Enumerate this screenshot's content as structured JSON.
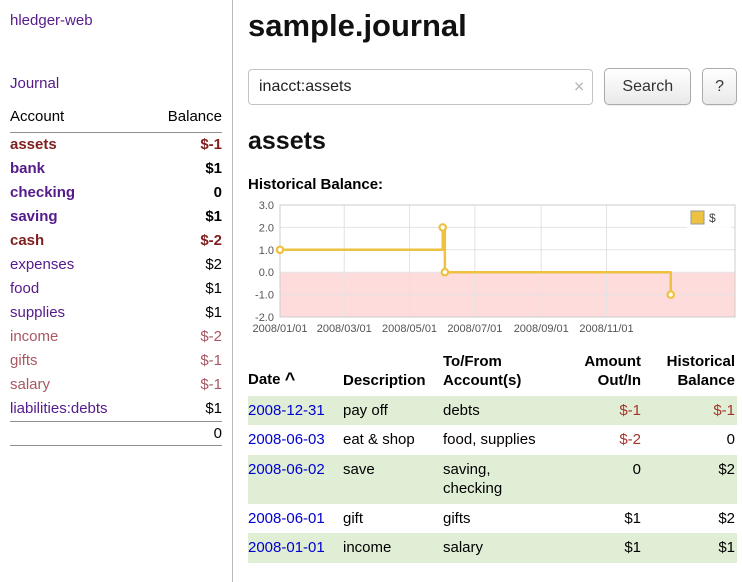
{
  "app": {
    "title": "hledger-web"
  },
  "sidebar": {
    "journal_label": "Journal",
    "accounts": {
      "header_account": "Account",
      "header_balance": "Balance",
      "rows": [
        {
          "name": "assets",
          "balance": "$-1"
        },
        {
          "name": "bank",
          "balance": "$1"
        },
        {
          "name": "checking",
          "balance": "0"
        },
        {
          "name": "saving",
          "balance": "$1"
        },
        {
          "name": "cash",
          "balance": "$-2"
        },
        {
          "name": "expenses",
          "balance": "$2"
        },
        {
          "name": "food",
          "balance": "$1"
        },
        {
          "name": "supplies",
          "balance": "$1"
        },
        {
          "name": "income",
          "balance": "$-2"
        },
        {
          "name": "gifts",
          "balance": "$-1"
        },
        {
          "name": "salary",
          "balance": "$-1"
        },
        {
          "name": "liabilities:debts",
          "balance": "$1"
        }
      ],
      "total": "0"
    }
  },
  "main": {
    "title": "sample.journal",
    "search": {
      "value": "inacct:assets",
      "clear_icon": "×",
      "button_label": "Search",
      "help_label": "?"
    },
    "account_heading": "assets",
    "chart_title": "Historical Balance:"
  },
  "chart_data": {
    "type": "line",
    "line_style": "step",
    "title": "Historical Balance",
    "x_min": "2008-01-01",
    "x_max": "2009-03-01",
    "ylim": [
      -2,
      3
    ],
    "yticks": [
      {
        "v": 3,
        "label": "3.0"
      },
      {
        "v": 2,
        "label": "2.0"
      },
      {
        "v": 1,
        "label": "1.0"
      },
      {
        "v": 0,
        "label": "0.0"
      },
      {
        "v": -1,
        "label": "-1.0"
      },
      {
        "v": -2,
        "label": "-2.0"
      }
    ],
    "xticks": [
      {
        "date": "2008-01-01",
        "label": "2008/01/01"
      },
      {
        "date": "2008-03-01",
        "label": "2008/03/01"
      },
      {
        "date": "2008-05-01",
        "label": "2008/05/01"
      },
      {
        "date": "2008-07-01",
        "label": "2008/07/01"
      },
      {
        "date": "2008-09-01",
        "label": "2008/09/01"
      },
      {
        "date": "2008-11-01",
        "label": "2008/11/01"
      }
    ],
    "series": [
      {
        "name": "$",
        "color": "#edc240",
        "points": [
          {
            "date": "2008-01-01",
            "value": 1
          },
          {
            "date": "2008-06-01",
            "value": 2
          },
          {
            "date": "2008-06-03",
            "value": 0
          },
          {
            "date": "2008-12-31",
            "value": -1
          }
        ]
      }
    ],
    "legend": {
      "label": "$",
      "box_color": "#edc240",
      "position": "top-right"
    },
    "negative_region_color": "#ffdcdc",
    "grid": true
  },
  "register": {
    "headers": {
      "date": "Date",
      "sort_indicator": "^",
      "description": "Description",
      "account": "To/From Account(s)",
      "amount": "Amount Out/In",
      "balance": "Historical Balance"
    },
    "rows": [
      {
        "date": "2008-12-31",
        "description": "pay off",
        "account": "debts",
        "amount": "$-1",
        "balance": "$-1"
      },
      {
        "date": "2008-06-03",
        "description": "eat & shop",
        "account": "food, supplies",
        "amount": "$-2",
        "balance": "0"
      },
      {
        "date": "2008-06-02",
        "description": "save",
        "account": "saving, checking",
        "amount": "0",
        "balance": "$2"
      },
      {
        "date": "2008-06-01",
        "description": "gift",
        "account": "gifts",
        "amount": "$1",
        "balance": "$2"
      },
      {
        "date": "2008-01-01",
        "description": "income",
        "account": "salary",
        "amount": "$1",
        "balance": "$1"
      }
    ]
  },
  "colors": {
    "link_purple": "#551a8b",
    "negative_strong": "#7f1f1f",
    "negative_soft": "#a85862",
    "table_negative": "#a3362a",
    "date_link_blue": "#0000cc",
    "row_stripe_green": "#e0eed6",
    "chart_line_gold": "#edc240",
    "negative_region_pink": "#ffdcdc"
  }
}
